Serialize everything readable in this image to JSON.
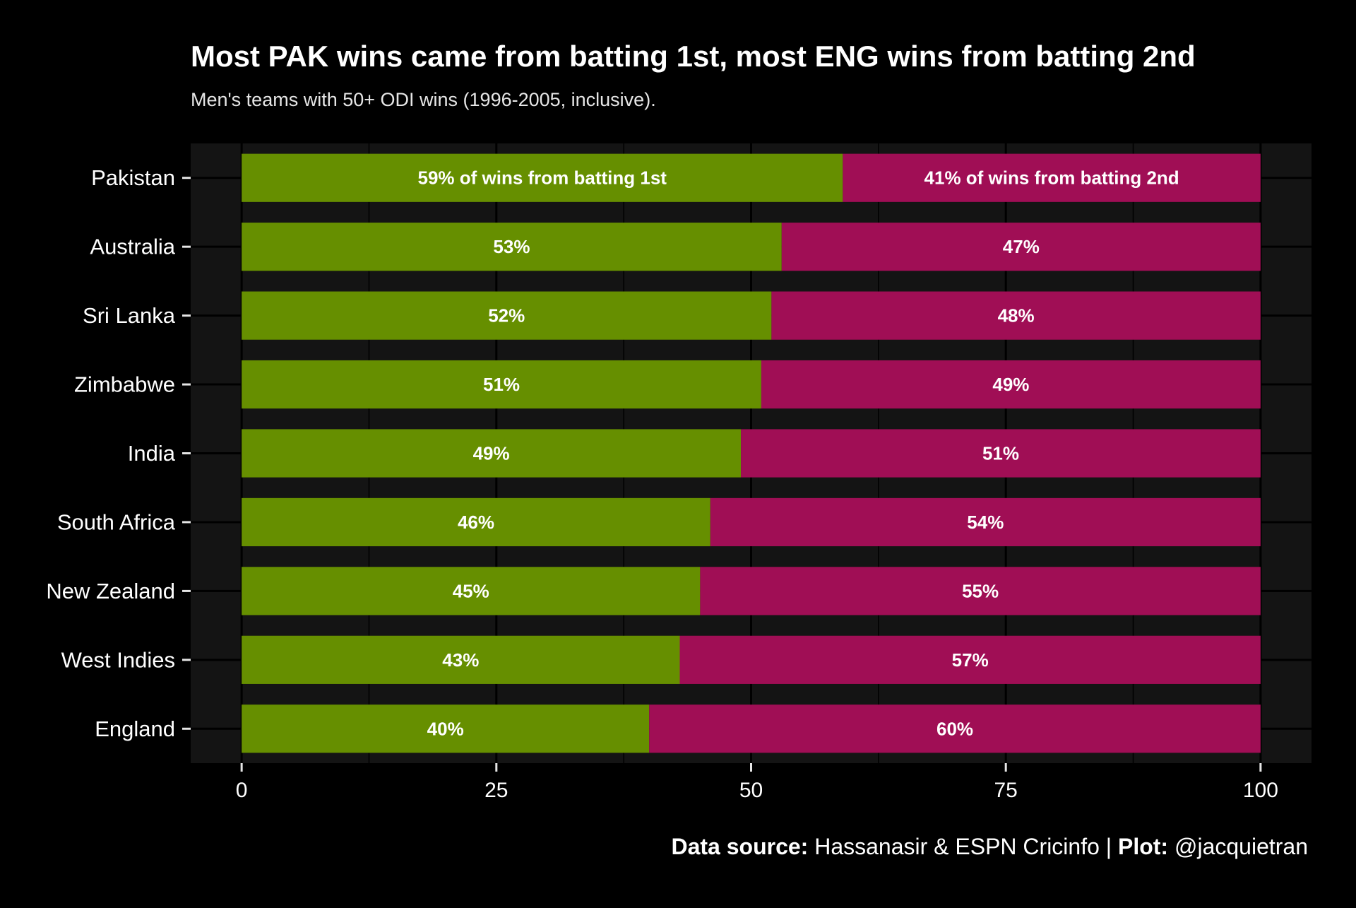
{
  "title": "Most PAK wins came from batting 1st, most ENG wins from batting 2nd",
  "subtitle": "Men's teams with 50+ ODI wins (1996-2005, inclusive).",
  "caption": {
    "source_label": "Data source:",
    "source_text": " Hassanasir & ESPN Cricinfo | ",
    "plot_label": "Plot:",
    "plot_text": " @jacquietran"
  },
  "colors": {
    "background": "#000000",
    "panel": "#141414",
    "grid": "#000000",
    "text": "#ffffff",
    "batting_1st": "#668f00",
    "batting_2nd": "#a00e55"
  },
  "chart_data": {
    "type": "bar",
    "orientation": "horizontal",
    "stacked": true,
    "categories": [
      "Pakistan",
      "Australia",
      "Sri Lanka",
      "Zimbabwe",
      "India",
      "South Africa",
      "New Zealand",
      "West Indies",
      "England"
    ],
    "series": [
      {
        "key": "batting_1st",
        "values": [
          59,
          53,
          52,
          51,
          49,
          46,
          45,
          43,
          40
        ],
        "labels": [
          "59% of wins from batting 1st",
          "53%",
          "52%",
          "51%",
          "49%",
          "46%",
          "45%",
          "43%",
          "40%"
        ]
      },
      {
        "key": "batting_2nd",
        "values": [
          41,
          47,
          48,
          49,
          51,
          54,
          55,
          57,
          60
        ],
        "labels": [
          "41% of wins from batting 2nd",
          "47%",
          "48%",
          "49%",
          "51%",
          "54%",
          "55%",
          "57%",
          "60%"
        ]
      }
    ],
    "x_ticks": [
      "0",
      "25",
      "50",
      "75",
      "100"
    ],
    "x_tick_values": [
      0,
      25,
      50,
      75,
      100
    ],
    "xlim": [
      -5,
      105
    ],
    "grid": true,
    "legend": "none"
  }
}
